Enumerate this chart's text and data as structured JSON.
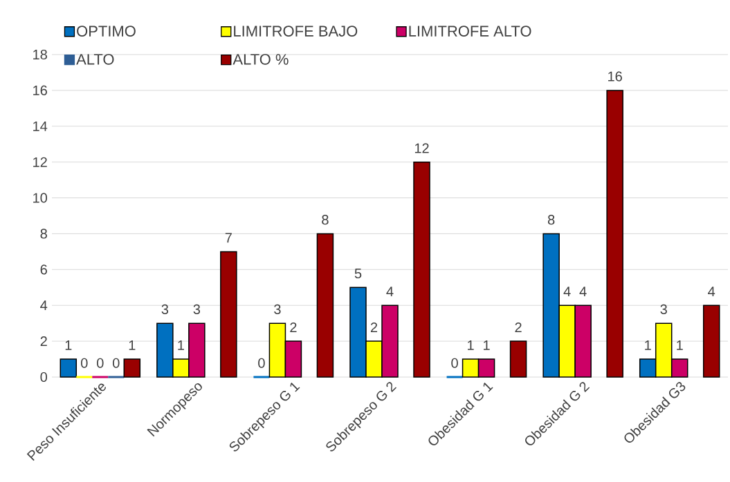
{
  "chart_data": {
    "type": "bar",
    "categories": [
      "Peso Insuficiente",
      "Normopeso",
      "Sobrepeso G 1",
      "Sobrepeso G 2",
      "Obesidad G 1",
      "Obesidad  G 2",
      "Obesidad G3"
    ],
    "series": [
      {
        "name": "OPTIMO",
        "color": "#0070c0",
        "values": [
          1,
          3,
          0,
          5,
          0,
          8,
          1
        ]
      },
      {
        "name": "LIMITROFE BAJO",
        "color": "#ffff00",
        "values": [
          0,
          1,
          3,
          2,
          1,
          4,
          3
        ]
      },
      {
        "name": "LIMITROFE ALTO",
        "color": "#cc0066",
        "values": [
          0,
          3,
          2,
          4,
          1,
          4,
          1
        ]
      },
      {
        "name": "ALTO",
        "color": "#2e5e95",
        "values": [
          0,
          null,
          null,
          null,
          null,
          null,
          null
        ]
      },
      {
        "name": "ALTO %",
        "color": "#990000",
        "values": [
          1,
          7,
          8,
          12,
          2,
          16,
          4
        ]
      }
    ],
    "ylim": [
      0,
      18
    ],
    "yticks": [
      0,
      2,
      4,
      6,
      8,
      10,
      12,
      14,
      16,
      18
    ],
    "grid": "y",
    "legend": "top left",
    "data_labels": true
  }
}
